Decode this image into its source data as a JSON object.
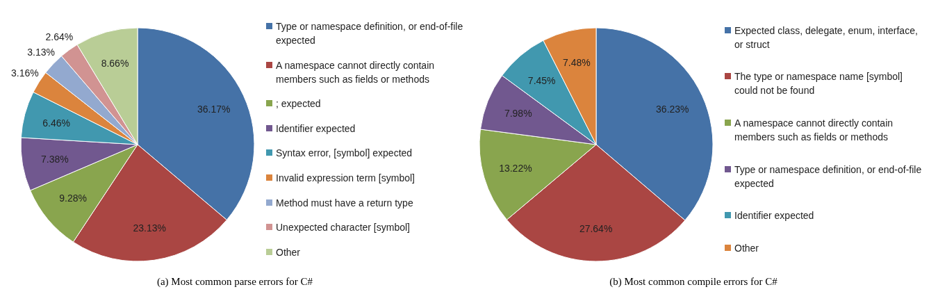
{
  "chart_data": [
    {
      "type": "pie",
      "title": "(a) Most common parse errors for C#",
      "legend": "right",
      "categories": [
        "Type or namespace definition, or end-of-file expected",
        "A namespace cannot directly contain members such as fields or methods",
        "; expected",
        "Identifier expected",
        "Syntax error, [symbol] expected",
        "Invalid expression term [symbol]",
        "Method must have a return type",
        "Unexpected character [symbol]",
        "Other"
      ],
      "values": [
        36.17,
        23.13,
        9.28,
        7.38,
        6.46,
        3.16,
        3.13,
        2.64,
        8.66
      ],
      "value_labels": [
        "36.17%",
        "23.13%",
        "9.28%",
        "7.38%",
        "6.46%",
        "3.16%",
        "3.13%",
        "2.64%",
        "8.66%"
      ],
      "colors": [
        "#4572a7",
        "#aa4643",
        "#89a54e",
        "#71588f",
        "#4198af",
        "#db843d",
        "#93a9cf",
        "#d19392",
        "#b9cd96"
      ]
    },
    {
      "type": "pie",
      "title": "(b) Most common compile errors for C#",
      "legend": "right",
      "categories": [
        "Expected class, delegate, enum, interface, or struct",
        "The type or namespace name [symbol] could not be found",
        "A namespace cannot directly contain members such as fields or methods",
        "Type or namespace definition, or end-of-file expected",
        "Identifier expected",
        "Other"
      ],
      "values": [
        36.23,
        27.64,
        13.22,
        7.98,
        7.45,
        7.48
      ],
      "value_labels": [
        "36.23%",
        "27.64%",
        "13.22%",
        "7.98%",
        "7.45%",
        "7.48%"
      ],
      "colors": [
        "#4572a7",
        "#aa4643",
        "#89a54e",
        "#71588f",
        "#4198af",
        "#db843d"
      ]
    }
  ]
}
